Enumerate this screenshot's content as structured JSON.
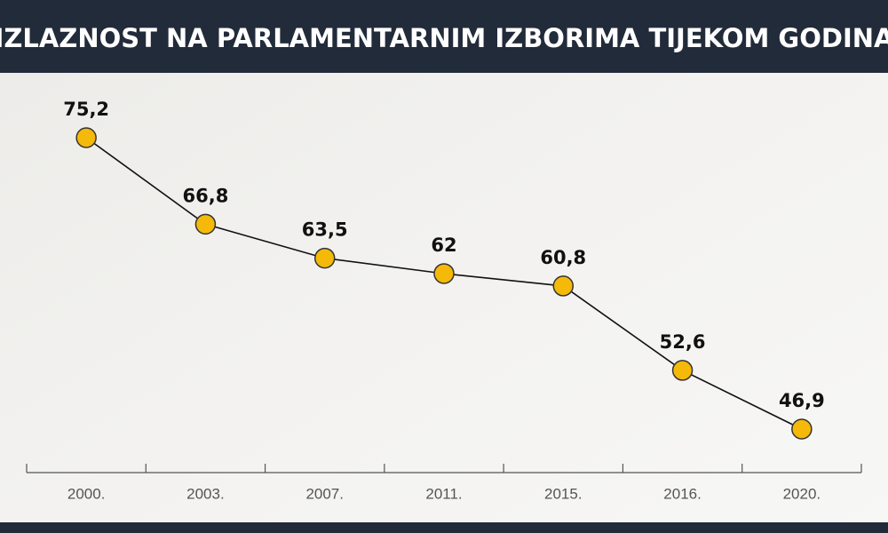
{
  "chart_data": {
    "type": "line",
    "title": "IZLAZNOST NA PARLAMENTARNIM IZBORIMA TIJEKOM GODINA",
    "categories": [
      "2000.",
      "2003.",
      "2007.",
      "2011.",
      "2015.",
      "2016.",
      "2020."
    ],
    "values": [
      75.2,
      66.8,
      63.5,
      62,
      60.8,
      52.6,
      46.9
    ],
    "value_labels": [
      "75,2",
      "66,8",
      "63,5",
      "62",
      "60,8",
      "52,6",
      "46,9"
    ],
    "color": "#f5b90a"
  }
}
